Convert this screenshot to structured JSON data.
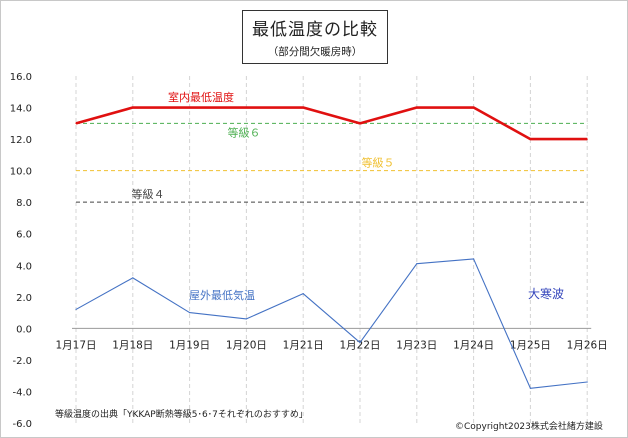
{
  "chart_data": {
    "type": "line",
    "title": "最低温度の比較",
    "subtitle": "（部分間欠暖房時）",
    "categories": [
      "1月17日",
      "1月18日",
      "1月19日",
      "1月20日",
      "1月21日",
      "1月22日",
      "1月23日",
      "1月24日",
      "1月25日",
      "1月26日"
    ],
    "ylim": [
      -6,
      16
    ],
    "yticks": [
      "16.0",
      "14.0",
      "12.0",
      "10.0",
      "8.0",
      "6.0",
      "4.0",
      "2.0",
      "0.0",
      "-2.0",
      "-4.0",
      "-6.0"
    ],
    "grid": "vertical-dashed",
    "series": [
      {
        "name": "室内最低温度",
        "color": "#e01010",
        "values": [
          13.0,
          14.0,
          14.0,
          14.0,
          14.0,
          13.0,
          14.0,
          14.0,
          12.0,
          12.0
        ]
      },
      {
        "name": "屋外最低気温",
        "color": "#4472c4",
        "values": [
          1.2,
          3.2,
          1.0,
          0.6,
          2.2,
          -0.9,
          4.1,
          4.4,
          -3.8,
          -3.4
        ]
      }
    ],
    "reference_lines": [
      {
        "label": "等級６",
        "value": 13.0,
        "color": "#4caf50"
      },
      {
        "label": "等級５",
        "value": 10.0,
        "color": "#f0c030"
      },
      {
        "label": "等級４",
        "value": 8.0,
        "color": "#444444"
      }
    ],
    "annotations": [
      {
        "text": "大寒波",
        "color": "#3344bb"
      }
    ]
  },
  "footer": {
    "source": "等級温度の出典「YKKAP断熱等級5･6･7それぞれのおすすめ」",
    "copyright": "©Copyright2023株式会社緒方建設"
  }
}
